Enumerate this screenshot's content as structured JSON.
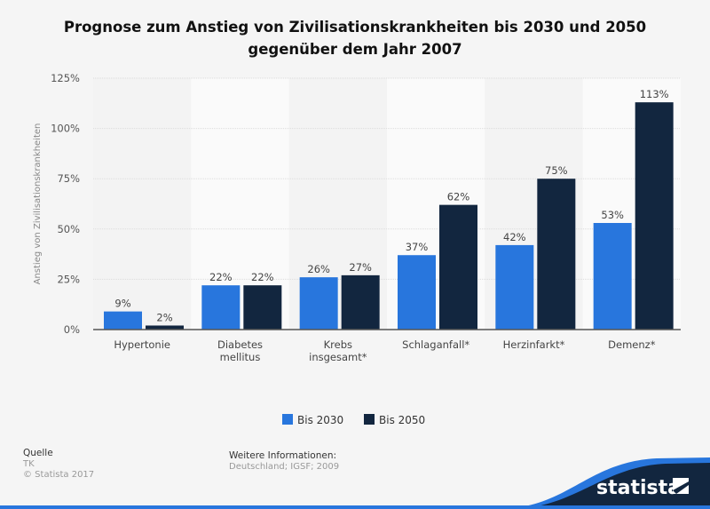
{
  "chart_data": {
    "type": "bar",
    "title": "Prognose zum Anstieg von Zivilisationskrankheiten bis 2030 und 2050 gegenüber dem Jahr 2007",
    "title_lines": [
      "Prognose zum Anstieg von Zivilisationskrankheiten bis 2030 und 2050",
      "gegenüber dem Jahr 2007"
    ],
    "ylabel": "Anstieg von Zivilisationskrankheiten",
    "xlabel": "",
    "ylim": [
      0,
      125
    ],
    "yticks": [
      0,
      25,
      50,
      75,
      100,
      125
    ],
    "ytick_labels": [
      "0%",
      "25%",
      "50%",
      "75%",
      "100%",
      "125%"
    ],
    "categories": [
      [
        "Hypertonie"
      ],
      [
        "Diabetes",
        "mellitus"
      ],
      [
        "Krebs",
        "insgesamt*"
      ],
      [
        "Schlaganfall*"
      ],
      [
        "Herzinfarkt*"
      ],
      [
        "Demenz*"
      ]
    ],
    "series": [
      {
        "name": "Bis 2030",
        "color": "#2876dd",
        "values": [
          9,
          22,
          26,
          37,
          42,
          53
        ],
        "labels": [
          "9%",
          "22%",
          "26%",
          "37%",
          "42%",
          "53%"
        ]
      },
      {
        "name": "Bis 2050",
        "color": "#12263f",
        "values": [
          2,
          22,
          27,
          62,
          75,
          113
        ],
        "labels": [
          "2%",
          "22%",
          "27%",
          "62%",
          "75%",
          "113%"
        ]
      }
    ],
    "grid": true,
    "legend_position": "bottom"
  },
  "footer": {
    "source_heading": "Quelle",
    "source": "TK",
    "copyright": "© Statista 2017",
    "info_heading": "Weitere Informationen:",
    "info": "Deutschland; IGSF; 2009",
    "logo_text": "statista"
  }
}
